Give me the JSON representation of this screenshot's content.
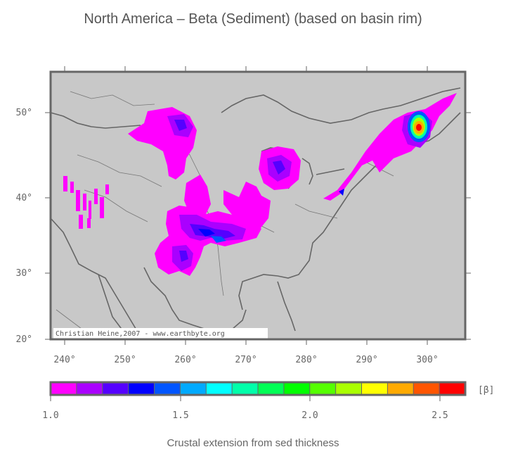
{
  "title": "North America – Beta (Sediment) (based on basin rim)",
  "credit": "Christian Heine,2007 - www.earthbyte.org",
  "lon_ticks": [
    "240°",
    "250°",
    "260°",
    "270°",
    "280°",
    "290°",
    "300°"
  ],
  "lat_ticks": [
    "20°",
    "30°",
    "40°",
    "50°"
  ],
  "colorbar": {
    "unit": "[β]",
    "labels": [
      "1.0",
      "1.5",
      "2.0",
      "2.5"
    ],
    "colors": [
      "#ff00ff",
      "#aa00ff",
      "#5500ff",
      "#0000ff",
      "#0055ff",
      "#00aaff",
      "#00ffff",
      "#00ffaa",
      "#00ff55",
      "#00ff00",
      "#55ff00",
      "#aaff00",
      "#ffff00",
      "#ffaa00",
      "#ff5500",
      "#ff0000"
    ]
  },
  "colorbar_caption": "Crustal extension from sed thickness"
}
